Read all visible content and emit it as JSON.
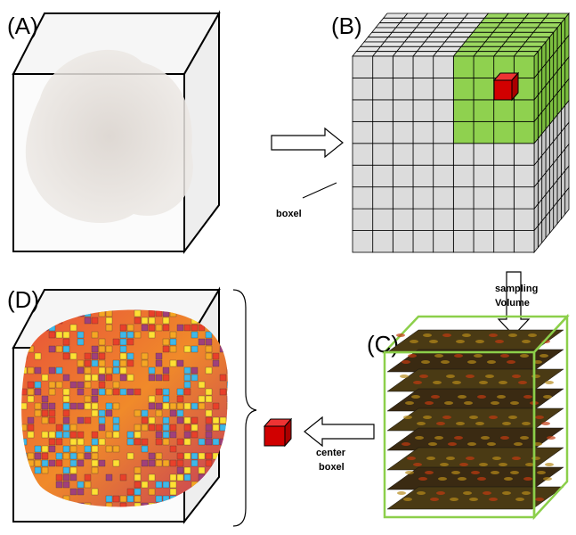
{
  "panels": [
    {
      "label": "(A)"
    },
    {
      "label": "(B)"
    },
    {
      "label": "(C)"
    },
    {
      "label": "(D)"
    }
  ],
  "annotations": {
    "boxel": "boxel",
    "sampling": [
      "sampling",
      "Volume"
    ],
    "center": [
      "center",
      "boxel"
    ]
  }
}
